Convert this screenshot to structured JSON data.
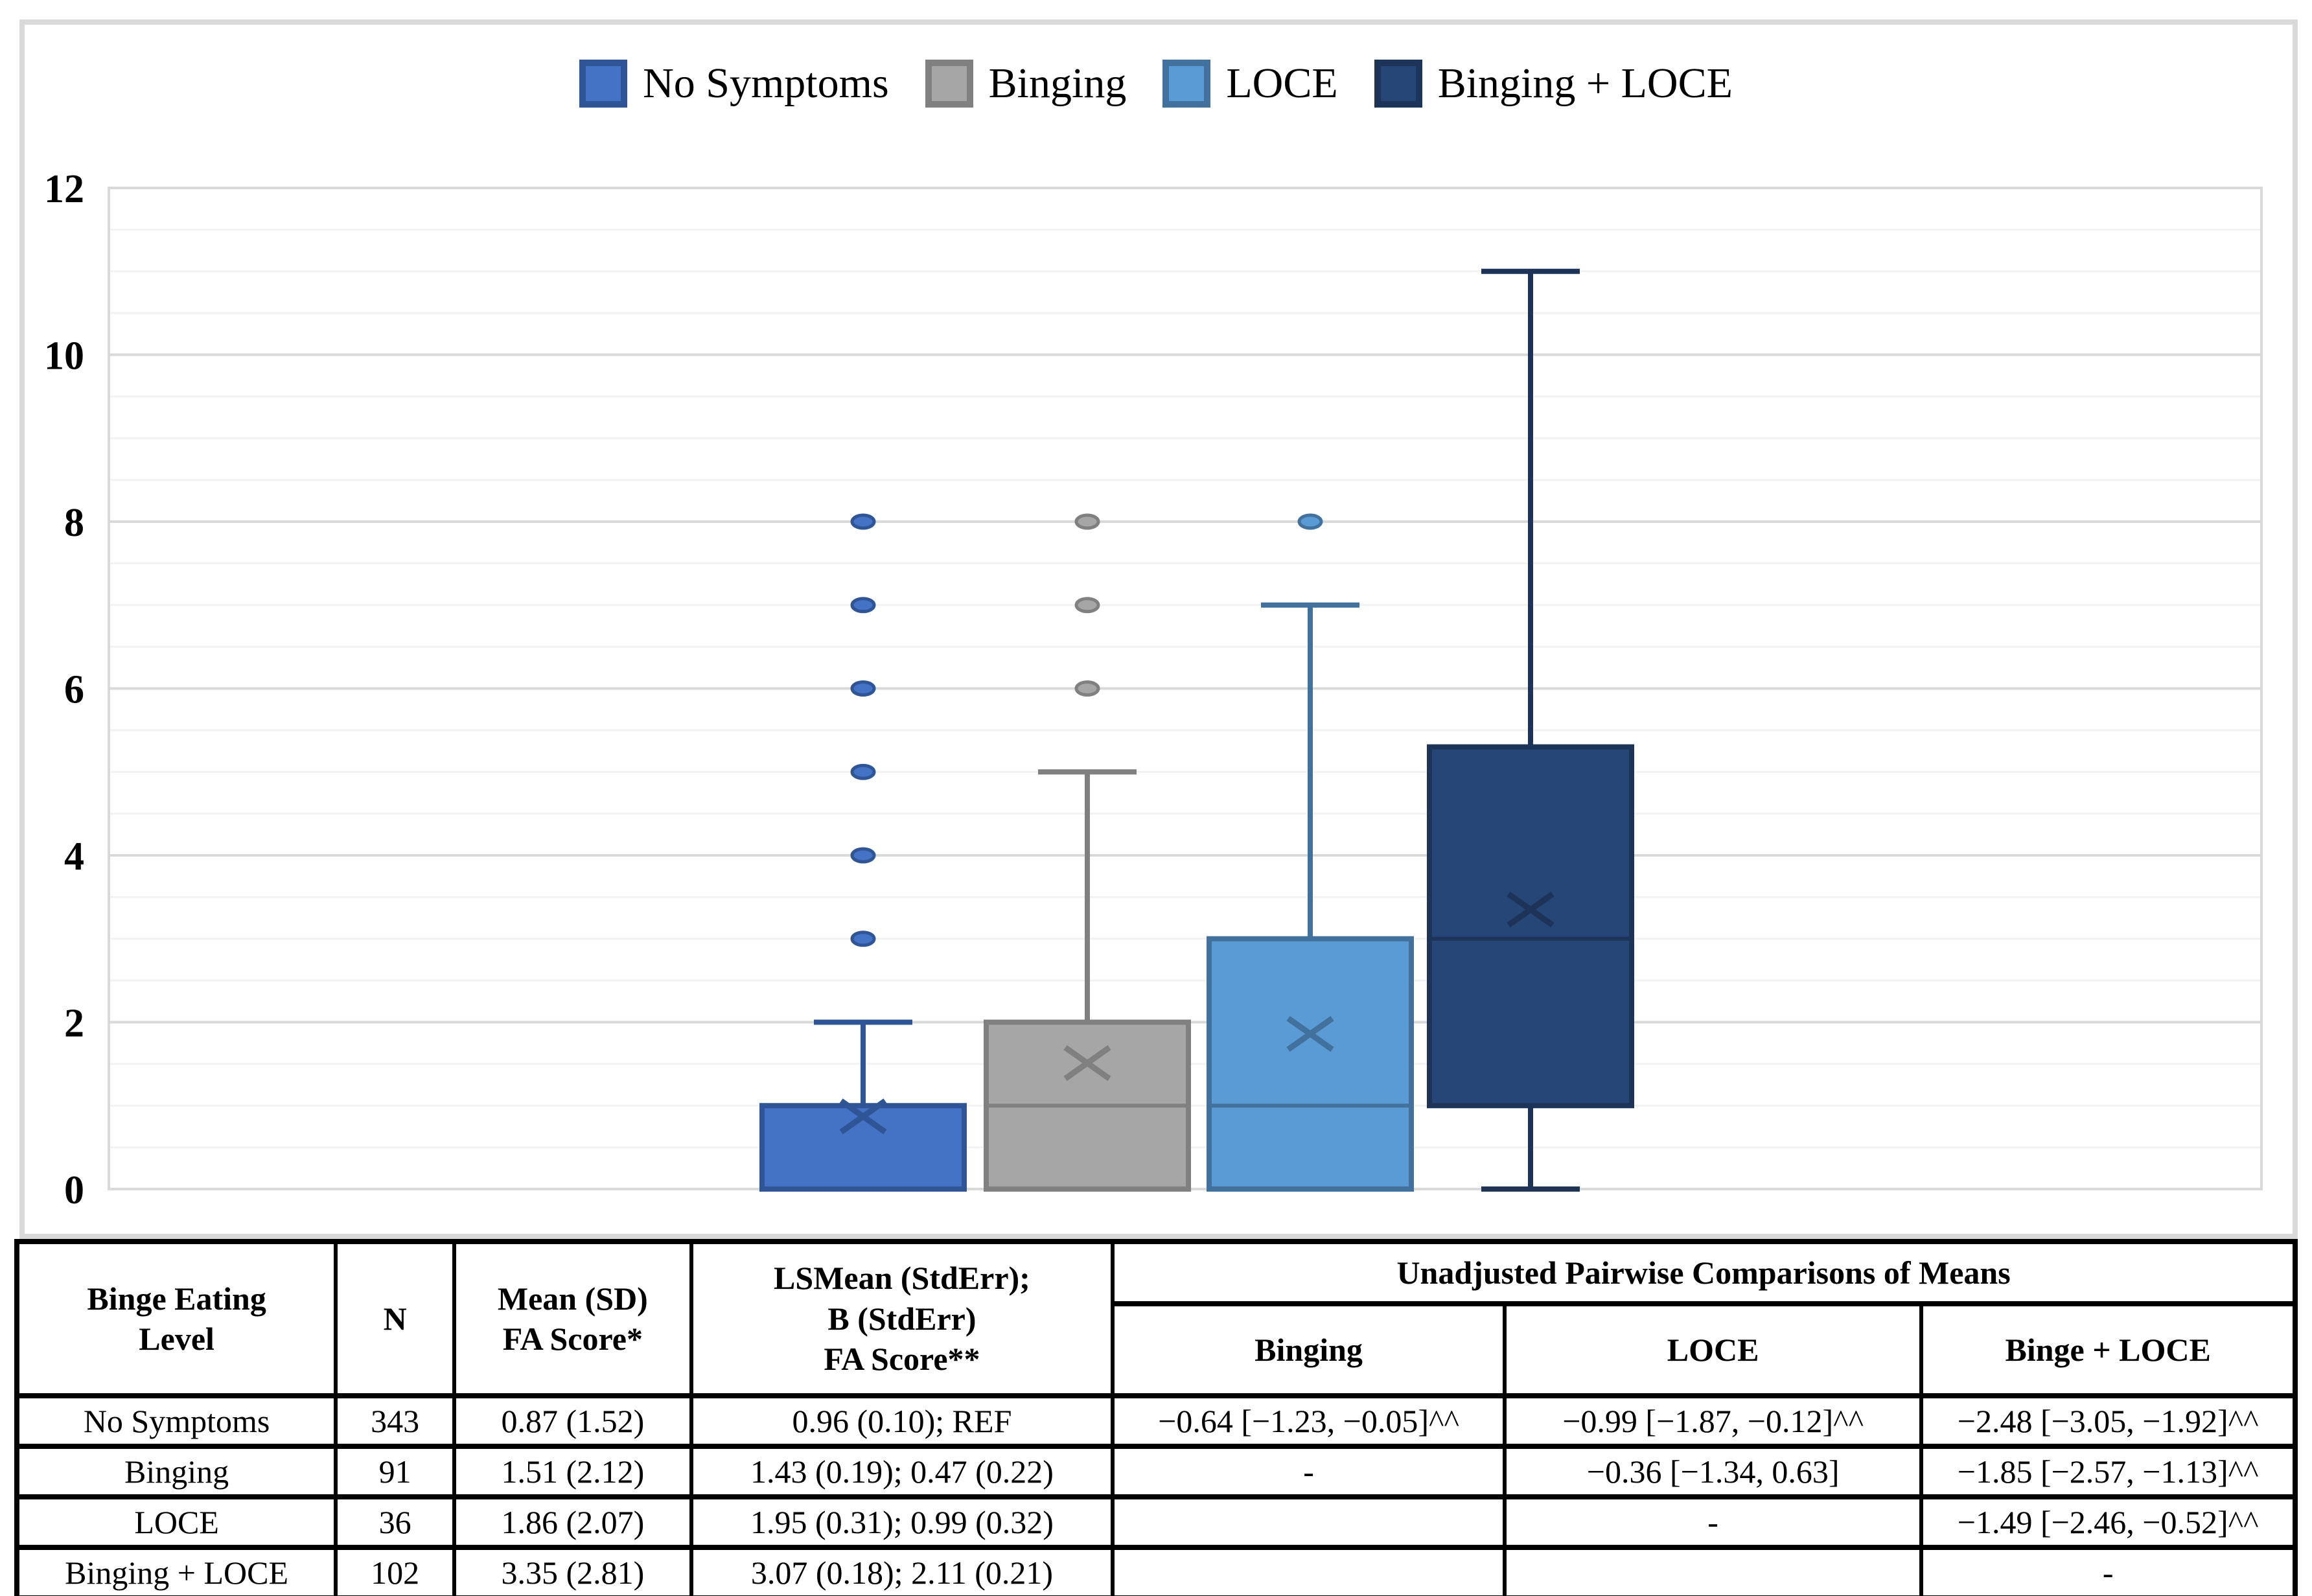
{
  "colors": {
    "frame_border": "#D9D9D9",
    "major_gridline": "#D9D9D9",
    "minor_gridline": "#F2F2F2",
    "table_border": "#000000"
  },
  "legend": {
    "items": [
      {
        "label": "No Symptoms",
        "fill": "#4472C4",
        "border": "#2F5597"
      },
      {
        "label": "Binging",
        "fill": "#A6A6A6",
        "border": "#808080"
      },
      {
        "label": "LOCE",
        "fill": "#5B9BD5",
        "border": "#41719C"
      },
      {
        "label": "Binging + LOCE",
        "fill": "#264678",
        "border": "#1D3358"
      }
    ]
  },
  "chart_data": {
    "type": "boxplot",
    "title": "",
    "xlabel": "",
    "ylabel": "",
    "ylim": [
      0,
      12
    ],
    "yticks": [
      0,
      2,
      4,
      6,
      8,
      10,
      12
    ],
    "minor_grid_step": 0.5,
    "grid": true,
    "legend_position": "top-center",
    "series": [
      {
        "name": "No Symptoms",
        "fill": "#4472C4",
        "stroke": "#2F5597",
        "whisker_low": 0,
        "q1": 0,
        "median": null,
        "q3": 1,
        "whisker_high": 2,
        "mean": 0.87,
        "outliers": [
          3,
          4,
          5,
          6,
          7,
          8
        ]
      },
      {
        "name": "Binging",
        "fill": "#A6A6A6",
        "stroke": "#808080",
        "whisker_low": 0,
        "q1": 0,
        "median": 1,
        "q3": 2,
        "whisker_high": 5,
        "mean": 1.51,
        "outliers": [
          6,
          7,
          8
        ]
      },
      {
        "name": "LOCE",
        "fill": "#5B9BD5",
        "stroke": "#41719C",
        "whisker_low": 0,
        "q1": 0,
        "median": 1,
        "q3": 3,
        "whisker_high": 7,
        "mean": 1.86,
        "outliers": [
          8
        ]
      },
      {
        "name": "Binging + LOCE",
        "fill": "#264678",
        "stroke": "#1D3358",
        "whisker_low": 0,
        "q1": 1,
        "median": 3,
        "q3": 5.3,
        "whisker_high": 11,
        "mean": 3.35,
        "outliers": []
      }
    ]
  },
  "table": {
    "col_headers": {
      "binge_eating_level": [
        "Binge Eating",
        "Level"
      ],
      "n": "N",
      "mean_sd": [
        "Mean (SD)",
        "FA Score*"
      ],
      "lsmean": [
        "LSMean (StdErr);",
        "B (StdErr)",
        "FA Score**"
      ],
      "pairwise_group": "Unadjusted Pairwise Comparisons of Means"
    },
    "pairwise_headers": [
      "Binging",
      "LOCE",
      "Binge + LOCE"
    ],
    "rows": [
      {
        "level": "No Symptoms",
        "n": "343",
        "mean_sd": "0.87 (1.52)",
        "lsmean": "0.96 (0.10); REF",
        "binging": "−0.64 [−1.23, −0.05]^^",
        "loce": "−0.99 [−1.87, −0.12]^^",
        "binge_loce": "−2.48 [−3.05, −1.92]^^"
      },
      {
        "level": "Binging",
        "n": "91",
        "mean_sd": "1.51 (2.12)",
        "lsmean": "1.43 (0.19); 0.47 (0.22)",
        "binging": "-",
        "loce": "−0.36 [−1.34, 0.63]",
        "binge_loce": "−1.85 [−2.57, −1.13]^^"
      },
      {
        "level": "LOCE",
        "n": "36",
        "mean_sd": "1.86 (2.07)",
        "lsmean": "1.95 (0.31); 0.99 (0.32)",
        "binging": "",
        "loce": "-",
        "binge_loce": "−1.49 [−2.46, −0.52]^^"
      },
      {
        "level": "Binging + LOCE",
        "n": "102",
        "mean_sd": "3.35 (2.81)",
        "lsmean": "3.07 (0.18); 2.11 (0.21)",
        "binging": "",
        "loce": "",
        "binge_loce": "-"
      }
    ]
  }
}
